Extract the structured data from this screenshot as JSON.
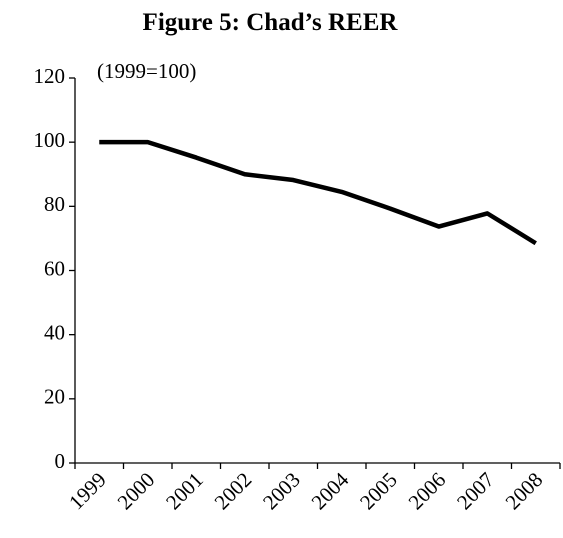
{
  "chart_data": {
    "type": "line",
    "title": "Figure 5: Chad’s REER",
    "subtitle": "(1999=100)",
    "categories": [
      "1999",
      "2000",
      "2001",
      "2002",
      "2003",
      "2004",
      "2005",
      "2006",
      "2007",
      "2008"
    ],
    "series": [
      {
        "name": "REER",
        "color": "#000000",
        "values": [
          100,
          100,
          95.2,
          90,
          88.2,
          84.5,
          79.3,
          73.7,
          77.8,
          68.5
        ]
      }
    ],
    "ylim": [
      0,
      120
    ],
    "yticks": [
      0,
      20,
      40,
      60,
      80,
      100,
      120
    ],
    "grid": false
  }
}
